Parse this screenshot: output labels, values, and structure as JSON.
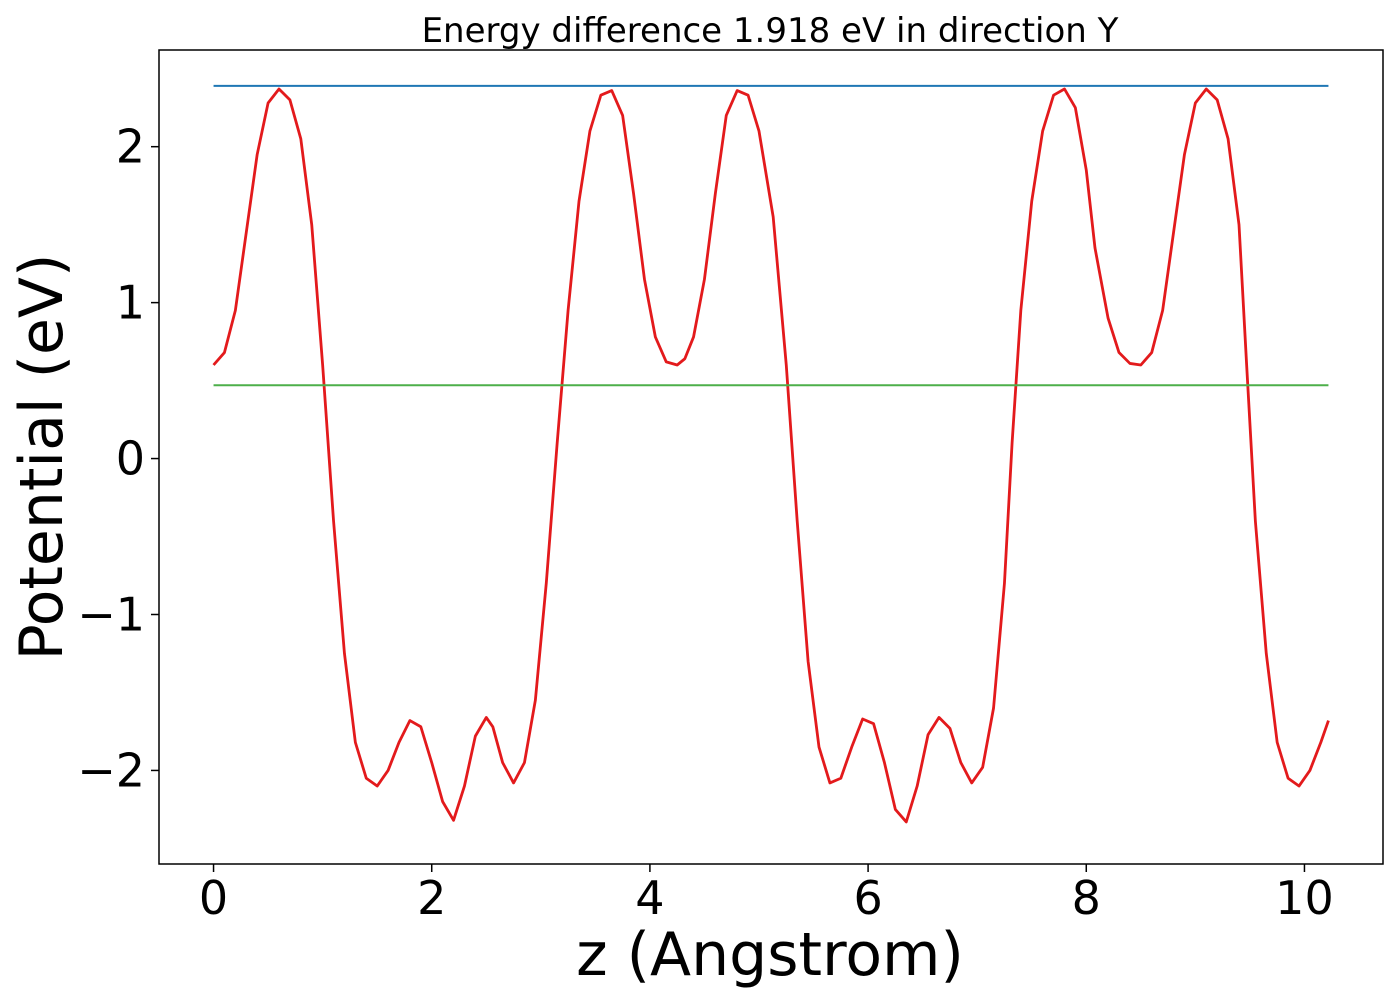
{
  "chart_data": {
    "type": "line",
    "title": "Energy difference 1.918 eV in direction Y",
    "xlabel": "z (Angstrom)",
    "ylabel": "Potential (eV)",
    "xlim": [
      -0.5,
      10.72
    ],
    "ylim": [
      -2.6,
      2.62
    ],
    "xticks": [
      0,
      2,
      4,
      6,
      8,
      10
    ],
    "xtick_labels": [
      "0",
      "2",
      "4",
      "6",
      "8",
      "10"
    ],
    "yticks": [
      -2,
      -1,
      0,
      1,
      2
    ],
    "ytick_labels": [
      "−2",
      "−1",
      "0",
      "1",
      "2"
    ],
    "grid": false,
    "series": [
      {
        "color": "#e31a1c",
        "x": [
          0.0,
          0.1,
          0.2,
          0.3,
          0.4,
          0.5,
          0.6,
          0.7,
          0.8,
          0.9,
          1.0,
          1.1,
          1.2,
          1.3,
          1.4,
          1.5,
          1.6,
          1.7,
          1.8,
          1.9,
          2.0,
          2.1,
          2.2,
          2.3,
          2.4,
          2.5,
          2.56,
          2.65,
          2.75,
          2.85,
          2.95,
          3.05,
          3.15,
          3.25,
          3.35,
          3.45,
          3.55,
          3.65,
          3.75,
          3.85,
          3.95,
          4.05,
          4.15,
          4.25,
          4.32,
          4.4,
          4.5,
          4.6,
          4.7,
          4.8,
          4.9,
          5.0,
          5.13,
          5.25,
          5.35,
          5.45,
          5.55,
          5.65,
          5.75,
          5.85,
          5.95,
          6.05,
          6.15,
          6.25,
          6.35,
          6.45,
          6.55,
          6.65,
          6.75,
          6.85,
          6.95,
          7.05,
          7.15,
          7.25,
          7.32,
          7.4,
          7.5,
          7.6,
          7.7,
          7.8,
          7.9,
          8.0,
          8.08,
          8.2,
          8.3,
          8.4,
          8.5,
          8.6,
          8.7,
          8.8,
          8.9,
          9.0,
          9.1,
          9.2,
          9.3,
          9.4,
          9.47,
          9.55,
          9.65,
          9.75,
          9.85,
          9.95,
          10.05,
          10.15,
          10.22
        ],
        "y": [
          0.6,
          0.68,
          0.95,
          1.45,
          1.95,
          2.28,
          2.37,
          2.3,
          2.05,
          1.5,
          0.6,
          -0.4,
          -1.25,
          -1.82,
          -2.05,
          -2.1,
          -2.0,
          -1.82,
          -1.68,
          -1.72,
          -1.95,
          -2.2,
          -2.32,
          -2.1,
          -1.78,
          -1.66,
          -1.72,
          -1.95,
          -2.08,
          -1.95,
          -1.55,
          -0.8,
          0.1,
          0.95,
          1.65,
          2.1,
          2.33,
          2.36,
          2.2,
          1.7,
          1.15,
          0.78,
          0.62,
          0.6,
          0.64,
          0.78,
          1.15,
          1.7,
          2.2,
          2.36,
          2.33,
          2.1,
          1.55,
          0.6,
          -0.4,
          -1.3,
          -1.85,
          -2.08,
          -2.05,
          -1.85,
          -1.67,
          -1.7,
          -1.95,
          -2.25,
          -2.33,
          -2.1,
          -1.77,
          -1.66,
          -1.73,
          -1.95,
          -2.08,
          -1.98,
          -1.6,
          -0.8,
          0.1,
          0.95,
          1.65,
          2.1,
          2.33,
          2.37,
          2.25,
          1.85,
          1.35,
          0.9,
          0.68,
          0.61,
          0.6,
          0.68,
          0.95,
          1.45,
          1.95,
          2.28,
          2.37,
          2.3,
          2.05,
          1.5,
          0.6,
          -0.4,
          -1.25,
          -1.82,
          -2.05,
          -2.1,
          -2.0,
          -1.82,
          -1.68
        ]
      },
      {
        "color": "#1f77b4",
        "x": [
          0.0,
          10.22
        ],
        "y": [
          2.39,
          2.39
        ]
      },
      {
        "color": "#4daf4a",
        "x": [
          0.0,
          10.22
        ],
        "y": [
          0.47,
          0.47
        ]
      }
    ]
  }
}
